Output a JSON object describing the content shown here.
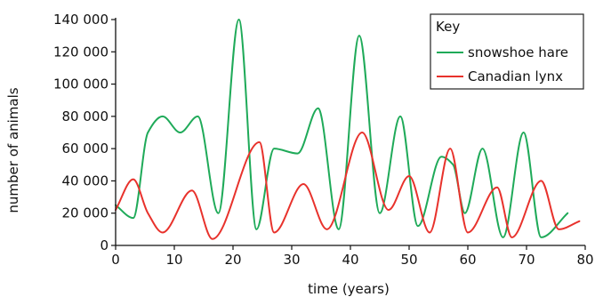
{
  "chart_data": {
    "type": "line",
    "xlabel": "time (years)",
    "ylabel": "number of animals",
    "xlim": [
      0,
      80
    ],
    "ylim": [
      0,
      140000
    ],
    "x_ticks": [
      0,
      10,
      20,
      30,
      40,
      50,
      60,
      70,
      80
    ],
    "y_ticks": [
      0,
      20000,
      40000,
      60000,
      80000,
      100000,
      120000,
      140000
    ],
    "y_tick_labels": [
      "0",
      "20 000",
      "40 000",
      "60 000",
      "80 000",
      "100 000",
      "120 000",
      "140 000"
    ],
    "grid": false,
    "legend": {
      "title": "Key",
      "position": "top-right"
    },
    "series": [
      {
        "name": "snowshoe hare",
        "color": "#1faa59",
        "x": [
          0,
          3,
          5.5,
          8,
          11,
          14,
          17.5,
          21,
          24,
          27,
          31,
          34.5,
          38,
          41.5,
          45,
          48.5,
          51.5,
          55.5,
          57.5,
          59.5,
          62.5,
          66,
          69.5,
          72.5,
          77
        ],
        "y": [
          25000,
          17000,
          70000,
          80000,
          70000,
          80000,
          20000,
          140000,
          10000,
          60000,
          57000,
          85000,
          10000,
          130000,
          20000,
          80000,
          12000,
          55000,
          50000,
          20000,
          60000,
          5000,
          70000,
          5000,
          20000
        ]
      },
      {
        "name": "Canadian lynx",
        "color": "#e8322c",
        "x": [
          0,
          3,
          5.5,
          8,
          13,
          16.5,
          24.5,
          27,
          32,
          36,
          42,
          46.5,
          50,
          53.5,
          57,
          60,
          65,
          67.5,
          72.5,
          75.5,
          79
        ],
        "y": [
          22000,
          41000,
          20000,
          8000,
          34000,
          4000,
          64000,
          8000,
          38000,
          10000,
          70000,
          22000,
          43000,
          8000,
          60000,
          8000,
          36000,
          5000,
          40000,
          10000,
          15000
        ]
      }
    ]
  }
}
